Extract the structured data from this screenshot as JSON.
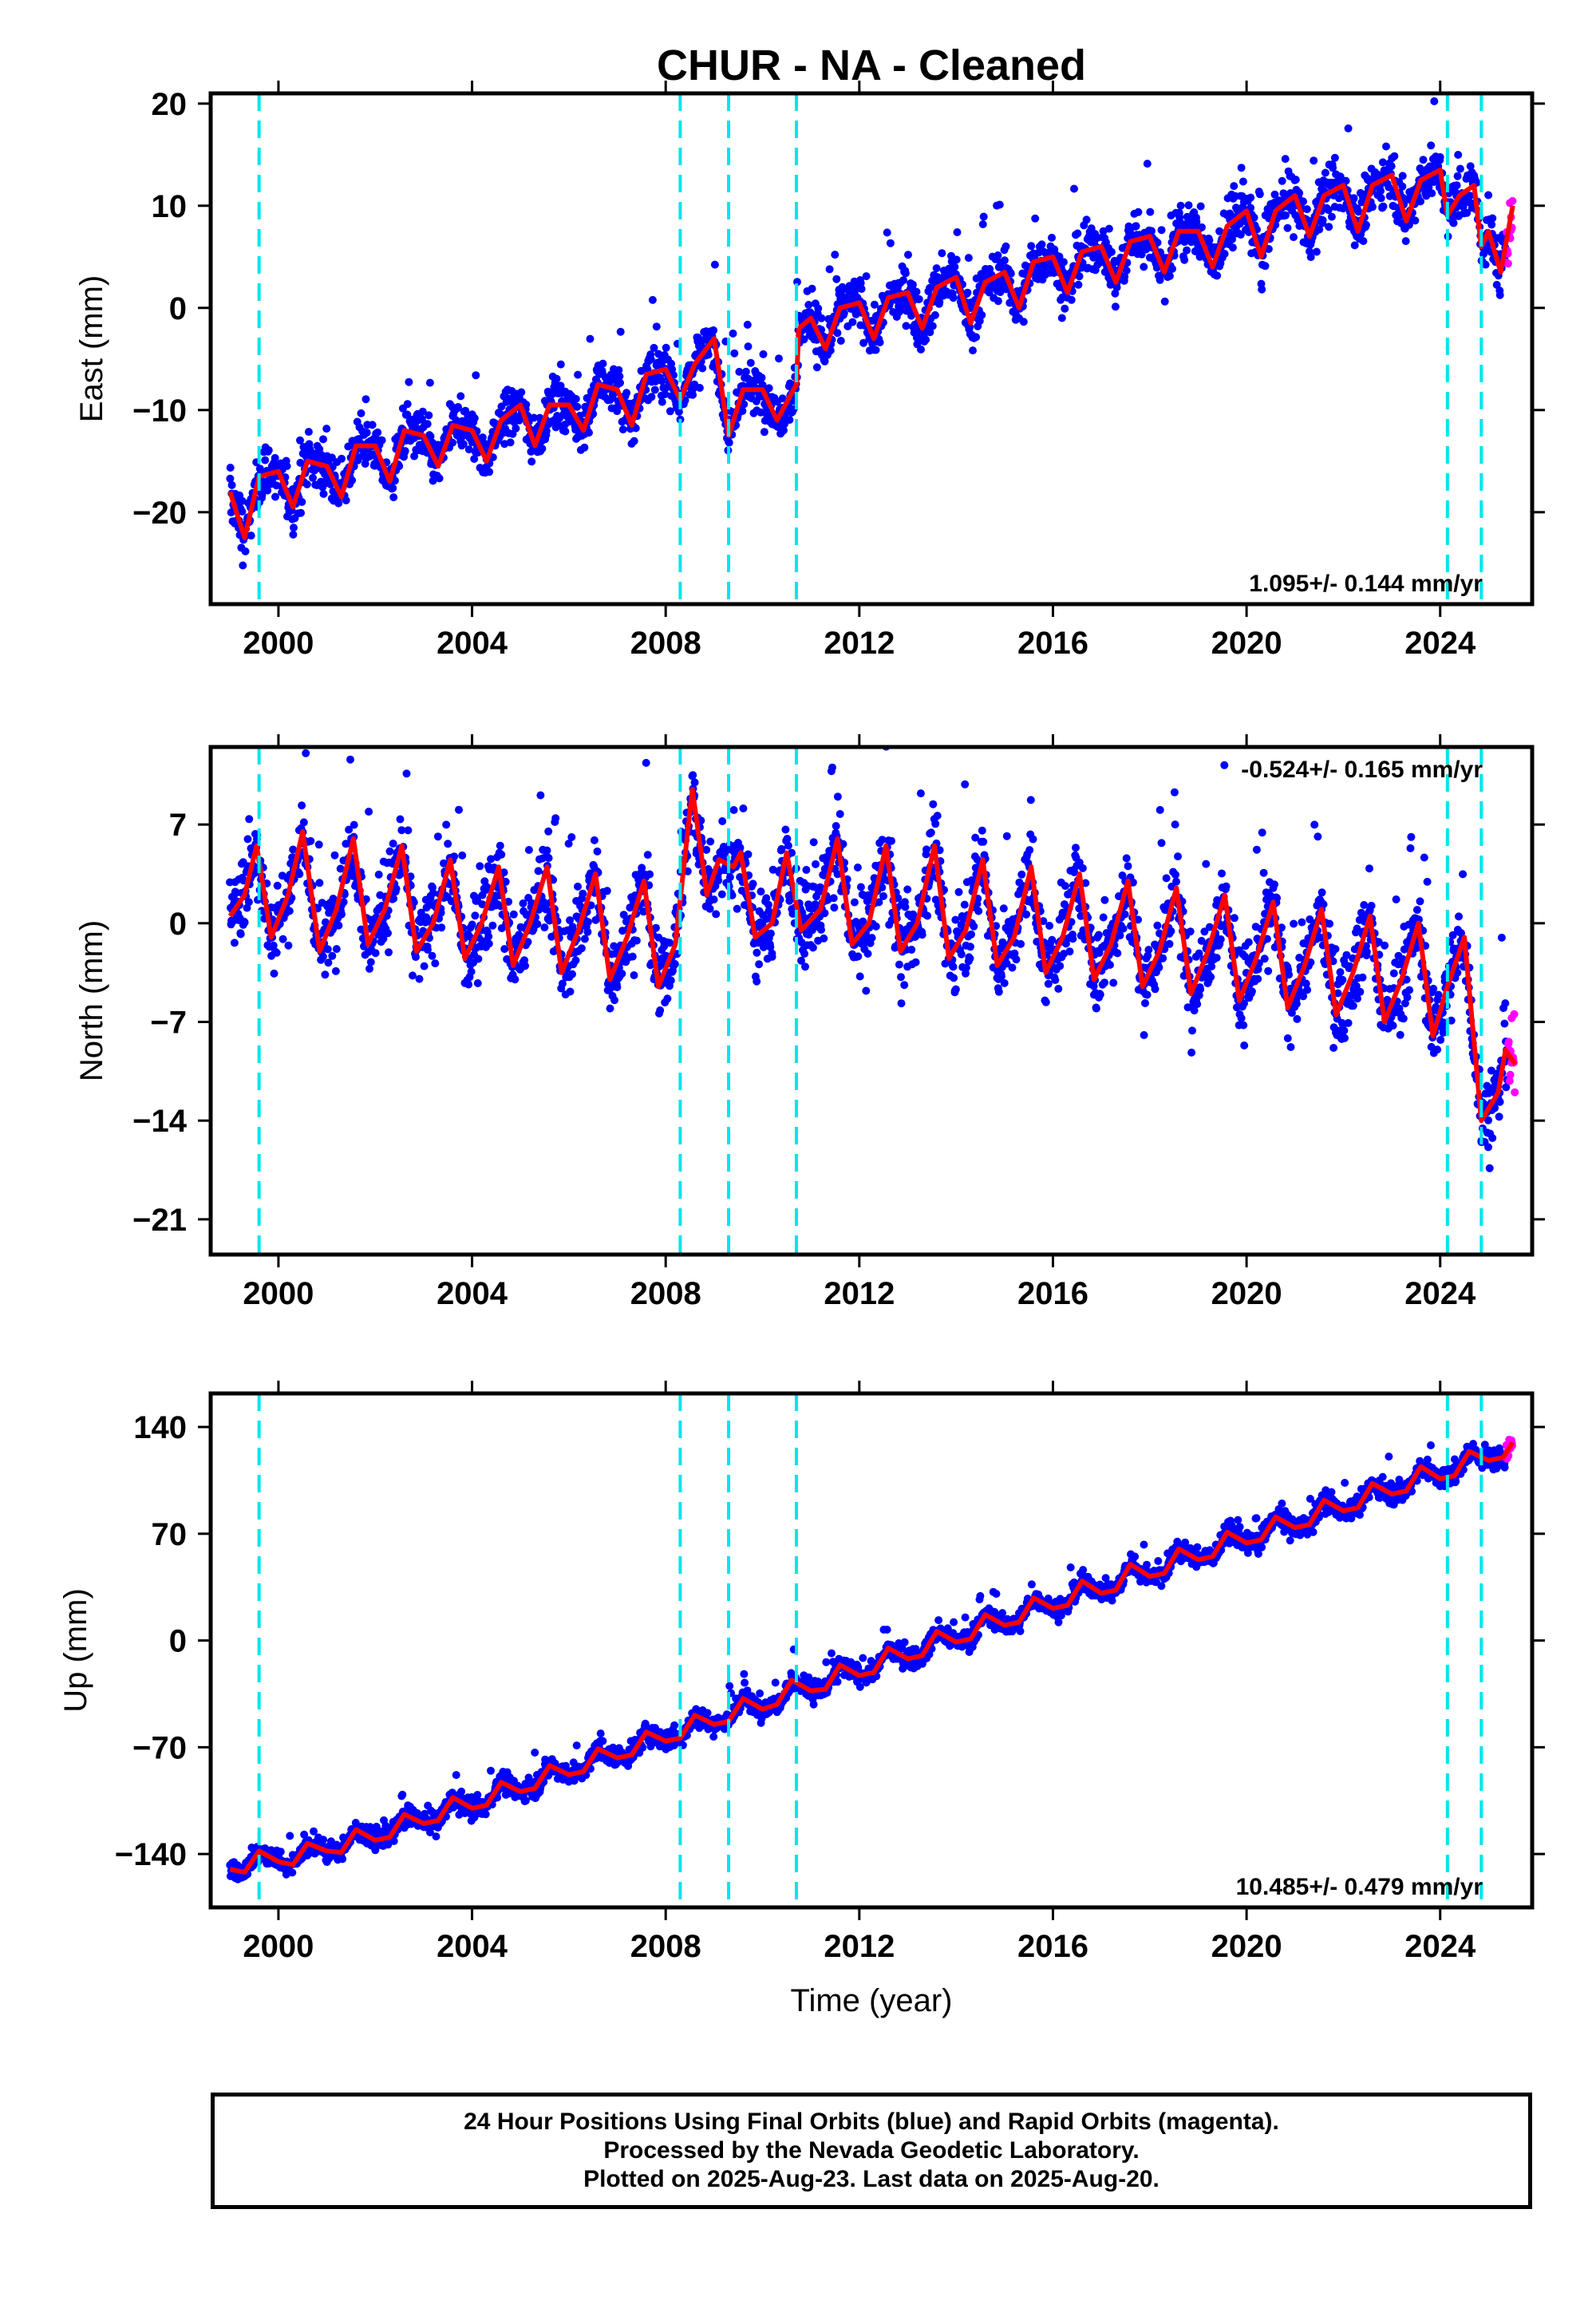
{
  "title": "CHUR  - NA - Cleaned",
  "footer": {
    "line1": "24 Hour Positions Using Final Orbits (blue) and Rapid Orbits (magenta).",
    "line2": "Processed by the Nevada Geodetic Laboratory.",
    "line3": "Plotted on 2025-Aug-23. Last data on 2025-Aug-20."
  },
  "colors": {
    "final_orbits": "#0000ff",
    "rapid_orbits": "#ff00ff",
    "model": "#ff0000",
    "breaks": "#00e5ee"
  },
  "chart_data": [
    {
      "type": "scatter",
      "name": "east",
      "ylabel": "East (mm)",
      "xlabel": "",
      "xlim": [
        1998.6,
        2025.9
      ],
      "ylim": [
        -29,
        21
      ],
      "xticks": [
        2000,
        2004,
        2008,
        2012,
        2016,
        2020,
        2024
      ],
      "yticks": [
        -20,
        -10,
        0,
        10,
        20
      ],
      "rate_label": "1.095+/- 0.144 mm/yr",
      "rate_label_position": "bottom-right",
      "break_lines": [
        1999.6,
        2008.3,
        2009.3,
        2010.7,
        2024.15,
        2024.85
      ],
      "trend": {
        "start": [
          1999.0,
          -20
        ],
        "end": [
          2025.5,
          9
        ]
      },
      "seasonal_amplitude": 2.5,
      "scatter_halfwidth": 3.5,
      "model_line_points": [
        [
          1999.0,
          -18
        ],
        [
          1999.3,
          -22.5
        ],
        [
          1999.6,
          -16.5
        ],
        [
          2000.0,
          -16
        ],
        [
          2000.3,
          -19.5
        ],
        [
          2000.6,
          -15
        ],
        [
          2001.0,
          -15.5
        ],
        [
          2001.3,
          -18.5
        ],
        [
          2001.6,
          -13.5
        ],
        [
          2002.0,
          -13.5
        ],
        [
          2002.3,
          -17
        ],
        [
          2002.6,
          -12
        ],
        [
          2003.0,
          -12.5
        ],
        [
          2003.3,
          -15.5
        ],
        [
          2003.6,
          -11.5
        ],
        [
          2004.0,
          -12
        ],
        [
          2004.3,
          -15
        ],
        [
          2004.6,
          -11
        ],
        [
          2005.0,
          -9.5
        ],
        [
          2005.3,
          -13.5
        ],
        [
          2005.6,
          -9.5
        ],
        [
          2006.0,
          -9.5
        ],
        [
          2006.3,
          -12
        ],
        [
          2006.6,
          -7.5
        ],
        [
          2007.0,
          -8
        ],
        [
          2007.3,
          -11.5
        ],
        [
          2007.6,
          -6.5
        ],
        [
          2008.0,
          -6
        ],
        [
          2008.3,
          -9
        ],
        [
          2008.6,
          -5.5
        ],
        [
          2009.0,
          -3
        ],
        [
          2009.3,
          -12.5
        ],
        [
          2009.6,
          -8
        ],
        [
          2010.0,
          -8
        ],
        [
          2010.3,
          -11
        ],
        [
          2010.7,
          -7.5
        ],
        [
          2010.75,
          -2
        ],
        [
          2011.0,
          -1
        ],
        [
          2011.3,
          -4
        ],
        [
          2011.6,
          0
        ],
        [
          2012.0,
          0.5
        ],
        [
          2012.3,
          -3
        ],
        [
          2012.6,
          1
        ],
        [
          2013.0,
          1.5
        ],
        [
          2013.3,
          -2
        ],
        [
          2013.6,
          2
        ],
        [
          2014.0,
          3
        ],
        [
          2014.3,
          -1.5
        ],
        [
          2014.6,
          2.5
        ],
        [
          2015.0,
          3.5
        ],
        [
          2015.3,
          0
        ],
        [
          2015.6,
          4.5
        ],
        [
          2016.0,
          5
        ],
        [
          2016.3,
          1.5
        ],
        [
          2016.6,
          5.5
        ],
        [
          2017.0,
          6
        ],
        [
          2017.3,
          2.5
        ],
        [
          2017.6,
          6.5
        ],
        [
          2018.0,
          7
        ],
        [
          2018.3,
          3.5
        ],
        [
          2018.6,
          7.5
        ],
        [
          2019.0,
          7.5
        ],
        [
          2019.3,
          4
        ],
        [
          2019.6,
          8
        ],
        [
          2020.0,
          9.5
        ],
        [
          2020.3,
          5
        ],
        [
          2020.6,
          9.5
        ],
        [
          2021.0,
          11
        ],
        [
          2021.3,
          7
        ],
        [
          2021.6,
          11
        ],
        [
          2022.0,
          12
        ],
        [
          2022.3,
          7.5
        ],
        [
          2022.6,
          12
        ],
        [
          2023.0,
          13
        ],
        [
          2023.3,
          8.5
        ],
        [
          2023.6,
          12.5
        ],
        [
          2024.0,
          13.5
        ],
        [
          2024.15,
          9
        ],
        [
          2024.4,
          11
        ],
        [
          2024.7,
          12
        ],
        [
          2024.85,
          6
        ],
        [
          2025.0,
          7.5
        ],
        [
          2025.25,
          3.5
        ],
        [
          2025.5,
          10
        ]
      ]
    },
    {
      "type": "scatter",
      "name": "north",
      "ylabel": "North (mm)",
      "xlabel": "",
      "xlim": [
        1998.6,
        2025.9
      ],
      "ylim": [
        -23.5,
        12.5
      ],
      "xticks": [
        2000,
        2004,
        2008,
        2012,
        2016,
        2020,
        2024
      ],
      "yticks": [
        -21,
        -14,
        -7,
        0,
        7
      ],
      "rate_label": "-0.524+/- 0.165 mm/yr",
      "rate_label_position": "top-right",
      "break_lines": [
        1999.6,
        2008.3,
        2009.3,
        2010.7,
        2024.15,
        2024.85
      ],
      "trend": {
        "start": [
          1999.0,
          1.5
        ],
        "end": [
          2025.5,
          -9
        ]
      },
      "seasonal_amplitude": 3.5,
      "scatter_halfwidth": 4,
      "model_line_points": [
        [
          1999.0,
          0.5
        ],
        [
          1999.3,
          2
        ],
        [
          1999.55,
          5.5
        ],
        [
          1999.85,
          -1
        ],
        [
          2000.2,
          2
        ],
        [
          2000.5,
          6.5
        ],
        [
          2000.85,
          -2
        ],
        [
          2001.2,
          1
        ],
        [
          2001.55,
          6
        ],
        [
          2001.85,
          -1.5
        ],
        [
          2002.2,
          1
        ],
        [
          2002.55,
          5.5
        ],
        [
          2002.85,
          -2
        ],
        [
          2003.2,
          0
        ],
        [
          2003.55,
          4.5
        ],
        [
          2003.85,
          -2.5
        ],
        [
          2004.2,
          0
        ],
        [
          2004.55,
          4
        ],
        [
          2004.85,
          -3
        ],
        [
          2005.2,
          0
        ],
        [
          2005.55,
          4
        ],
        [
          2005.85,
          -3.5
        ],
        [
          2006.2,
          -0.5
        ],
        [
          2006.55,
          3.5
        ],
        [
          2006.85,
          -4
        ],
        [
          2007.2,
          -1
        ],
        [
          2007.55,
          3
        ],
        [
          2007.85,
          -4.5
        ],
        [
          2008.2,
          -1.5
        ],
        [
          2008.55,
          9.5
        ],
        [
          2008.85,
          2
        ],
        [
          2009.1,
          4.5
        ],
        [
          2009.4,
          4
        ],
        [
          2009.55,
          5
        ],
        [
          2009.85,
          -1
        ],
        [
          2010.2,
          0
        ],
        [
          2010.5,
          5
        ],
        [
          2010.8,
          -0.5
        ],
        [
          2011.2,
          1
        ],
        [
          2011.55,
          6
        ],
        [
          2011.85,
          -1.5
        ],
        [
          2012.2,
          0
        ],
        [
          2012.55,
          5.5
        ],
        [
          2012.85,
          -2
        ],
        [
          2013.2,
          0
        ],
        [
          2013.55,
          5.5
        ],
        [
          2013.85,
          -2.5
        ],
        [
          2014.2,
          -0.5
        ],
        [
          2014.55,
          4.5
        ],
        [
          2014.85,
          -3
        ],
        [
          2015.2,
          -1
        ],
        [
          2015.55,
          4
        ],
        [
          2015.85,
          -3.5
        ],
        [
          2016.2,
          -1
        ],
        [
          2016.55,
          3.5
        ],
        [
          2016.85,
          -4
        ],
        [
          2017.2,
          -1.5
        ],
        [
          2017.55,
          3
        ],
        [
          2017.85,
          -4.5
        ],
        [
          2018.2,
          -2
        ],
        [
          2018.55,
          2.5
        ],
        [
          2018.85,
          -5
        ],
        [
          2019.2,
          -2
        ],
        [
          2019.55,
          2
        ],
        [
          2019.85,
          -5.5
        ],
        [
          2020.2,
          -2.5
        ],
        [
          2020.55,
          1.5
        ],
        [
          2020.85,
          -6
        ],
        [
          2021.2,
          -3
        ],
        [
          2021.55,
          1
        ],
        [
          2021.85,
          -6.5
        ],
        [
          2022.2,
          -3.5
        ],
        [
          2022.55,
          0.5
        ],
        [
          2022.85,
          -7
        ],
        [
          2023.2,
          -4
        ],
        [
          2023.55,
          0
        ],
        [
          2023.85,
          -8
        ],
        [
          2024.15,
          -4.5
        ],
        [
          2024.5,
          -1
        ],
        [
          2024.85,
          -14
        ],
        [
          2025.2,
          -12
        ],
        [
          2025.35,
          -9
        ],
        [
          2025.55,
          -10
        ]
      ]
    },
    {
      "type": "scatter",
      "name": "up",
      "ylabel": "Up (mm)",
      "xlabel": "Time (year)",
      "xlim": [
        1998.6,
        2025.9
      ],
      "ylim": [
        -175,
        162
      ],
      "xticks": [
        2000,
        2004,
        2008,
        2012,
        2016,
        2020,
        2024
      ],
      "yticks": [
        -140,
        -70,
        0,
        70,
        140
      ],
      "rate_label": "10.485+/- 0.479 mm/yr",
      "rate_label_position": "bottom-right",
      "break_lines": [
        1999.6,
        2008.3,
        2009.3,
        2010.7,
        2024.15,
        2024.85
      ],
      "trend": {
        "start": [
          1999.0,
          -150
        ],
        "end": [
          2025.5,
          128
        ]
      },
      "seasonal_amplitude": 6,
      "scatter_halfwidth": 9,
      "model_line_points": [
        [
          1999.0,
          -150
        ],
        [
          1999.3,
          -152
        ],
        [
          1999.6,
          -138
        ],
        [
          2000.0,
          -145
        ],
        [
          2000.3,
          -147
        ],
        [
          2000.6,
          -133
        ],
        [
          2001.0,
          -138
        ],
        [
          2001.3,
          -139
        ],
        [
          2001.6,
          -124
        ],
        [
          2002.0,
          -131
        ],
        [
          2002.3,
          -129
        ],
        [
          2002.6,
          -114
        ],
        [
          2003.0,
          -120
        ],
        [
          2003.3,
          -118
        ],
        [
          2003.6,
          -103
        ],
        [
          2004.0,
          -110
        ],
        [
          2004.3,
          -108
        ],
        [
          2004.6,
          -93
        ],
        [
          2005.0,
          -99
        ],
        [
          2005.3,
          -97
        ],
        [
          2005.6,
          -82
        ],
        [
          2006.0,
          -88
        ],
        [
          2006.3,
          -86
        ],
        [
          2006.6,
          -71
        ],
        [
          2007.0,
          -77
        ],
        [
          2007.3,
          -75
        ],
        [
          2007.6,
          -60
        ],
        [
          2008.0,
          -66
        ],
        [
          2008.3,
          -64
        ],
        [
          2008.6,
          -49
        ],
        [
          2009.0,
          -55
        ],
        [
          2009.3,
          -53
        ],
        [
          2009.6,
          -38
        ],
        [
          2010.0,
          -45
        ],
        [
          2010.3,
          -42
        ],
        [
          2010.6,
          -26
        ],
        [
          2011.0,
          -33
        ],
        [
          2011.3,
          -32
        ],
        [
          2011.6,
          -16
        ],
        [
          2012.0,
          -23
        ],
        [
          2012.3,
          -21
        ],
        [
          2012.6,
          -5
        ],
        [
          2013.0,
          -12
        ],
        [
          2013.3,
          -10
        ],
        [
          2013.6,
          6
        ],
        [
          2014.0,
          -1
        ],
        [
          2014.3,
          1
        ],
        [
          2014.6,
          17
        ],
        [
          2015.0,
          10
        ],
        [
          2015.3,
          12
        ],
        [
          2015.6,
          28
        ],
        [
          2016.0,
          21
        ],
        [
          2016.3,
          23
        ],
        [
          2016.6,
          39
        ],
        [
          2017.0,
          31
        ],
        [
          2017.3,
          33
        ],
        [
          2017.6,
          50
        ],
        [
          2018.0,
          42
        ],
        [
          2018.3,
          44
        ],
        [
          2018.6,
          60
        ],
        [
          2019.0,
          53
        ],
        [
          2019.3,
          55
        ],
        [
          2019.6,
          71
        ],
        [
          2020.0,
          64
        ],
        [
          2020.3,
          66
        ],
        [
          2020.6,
          81
        ],
        [
          2021.0,
          74
        ],
        [
          2021.3,
          76
        ],
        [
          2021.6,
          92
        ],
        [
          2022.0,
          85
        ],
        [
          2022.3,
          87
        ],
        [
          2022.6,
          103
        ],
        [
          2023.0,
          96
        ],
        [
          2023.3,
          98
        ],
        [
          2023.6,
          114
        ],
        [
          2024.0,
          106
        ],
        [
          2024.3,
          108
        ],
        [
          2024.6,
          124
        ],
        [
          2025.0,
          118
        ],
        [
          2025.3,
          120
        ],
        [
          2025.5,
          130
        ]
      ]
    }
  ]
}
